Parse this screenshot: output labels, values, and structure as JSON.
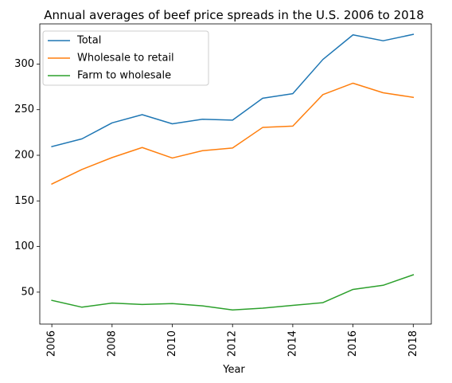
{
  "chart_data": {
    "type": "line",
    "title": "Annual averages of beef price spreads in the U.S. 2006 to 2018",
    "xlabel": "Year",
    "ylabel": "",
    "x": [
      2006,
      2007,
      2008,
      2009,
      2010,
      2011,
      2012,
      2013,
      2014,
      2015,
      2016,
      2017,
      2018
    ],
    "xticks": [
      "2006",
      "2008",
      "2010",
      "2012",
      "2014",
      "2016",
      "2018"
    ],
    "yticks": [
      "50",
      "100",
      "150",
      "200",
      "250",
      "300"
    ],
    "xlim": [
      2005.6,
      2018.6
    ],
    "ylim": [
      15,
      344
    ],
    "grid": false,
    "legend_position": "top-left",
    "series": [
      {
        "name": "Total",
        "color": "#1f77b4",
        "values": [
          209.5,
          218.0,
          235.5,
          244.5,
          234.5,
          239.5,
          238.5,
          262.5,
          267.5,
          305.0,
          332.0,
          325.5,
          332.5
        ]
      },
      {
        "name": "Wholesale to retail",
        "color": "#ff7f0e",
        "values": [
          168.5,
          184.5,
          197.5,
          208.5,
          197.0,
          205.0,
          208.0,
          230.5,
          232.0,
          266.5,
          279.0,
          268.5,
          263.5
        ]
      },
      {
        "name": "Farm to wholesale",
        "color": "#2ca02c",
        "values": [
          41.0,
          33.5,
          38.0,
          36.5,
          37.5,
          35.0,
          30.5,
          32.5,
          35.5,
          38.5,
          53.0,
          57.5,
          69.0
        ]
      }
    ]
  }
}
